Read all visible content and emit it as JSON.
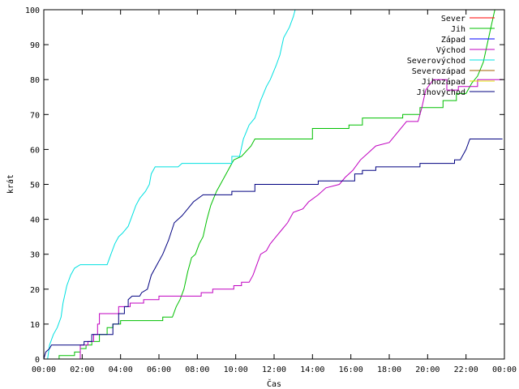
{
  "chart_data": {
    "type": "line",
    "title": "",
    "xlabel": "Čas",
    "ylabel": "krát",
    "xlim": [
      0,
      24
    ],
    "ylim": [
      0,
      100
    ],
    "grid": false,
    "legend_position": "top-right",
    "x_ticks": [
      {
        "value": 0,
        "label": "00:00"
      },
      {
        "value": 2,
        "label": "02:00"
      },
      {
        "value": 4,
        "label": "04:00"
      },
      {
        "value": 6,
        "label": "06:00"
      },
      {
        "value": 8,
        "label": "08:00"
      },
      {
        "value": 10,
        "label": "10:00"
      },
      {
        "value": 12,
        "label": "12:00"
      },
      {
        "value": 14,
        "label": "14:00"
      },
      {
        "value": 16,
        "label": "16:00"
      },
      {
        "value": 18,
        "label": "18:00"
      },
      {
        "value": 20,
        "label": "20:00"
      },
      {
        "value": 22,
        "label": "22:00"
      },
      {
        "value": 24,
        "label": "00:00"
      }
    ],
    "y_ticks": [
      0,
      10,
      20,
      30,
      40,
      50,
      60,
      70,
      80,
      90,
      100
    ],
    "series": [
      {
        "name": "Sever",
        "color": "#ff0000",
        "points": []
      },
      {
        "name": "Jih",
        "color": "#00c000",
        "points": [
          [
            0.0,
            0
          ],
          [
            0.8,
            0
          ],
          [
            0.8,
            1
          ],
          [
            1.6,
            1
          ],
          [
            1.6,
            2
          ],
          [
            1.9,
            2
          ],
          [
            1.9,
            3
          ],
          [
            2.2,
            3
          ],
          [
            2.2,
            4
          ],
          [
            2.5,
            4
          ],
          [
            2.5,
            5
          ],
          [
            2.9,
            5
          ],
          [
            2.9,
            7
          ],
          [
            3.3,
            7
          ],
          [
            3.3,
            9
          ],
          [
            3.6,
            9
          ],
          [
            3.6,
            10
          ],
          [
            4.0,
            10
          ],
          [
            4.0,
            11
          ],
          [
            6.2,
            11
          ],
          [
            6.2,
            12
          ],
          [
            6.7,
            12
          ],
          [
            6.9,
            15
          ],
          [
            7.1,
            17
          ],
          [
            7.3,
            20
          ],
          [
            7.5,
            25
          ],
          [
            7.7,
            29
          ],
          [
            7.9,
            30
          ],
          [
            8.1,
            33
          ],
          [
            8.3,
            35
          ],
          [
            8.5,
            40
          ],
          [
            8.7,
            44
          ],
          [
            9.0,
            48
          ],
          [
            9.3,
            51
          ],
          [
            9.6,
            54
          ],
          [
            9.9,
            57
          ],
          [
            10.3,
            58
          ],
          [
            10.8,
            61
          ],
          [
            11.0,
            63
          ],
          [
            14.0,
            63
          ],
          [
            14.0,
            66
          ],
          [
            15.9,
            66
          ],
          [
            15.9,
            67
          ],
          [
            16.6,
            67
          ],
          [
            16.6,
            69
          ],
          [
            18.7,
            69
          ],
          [
            18.7,
            70
          ],
          [
            19.6,
            70
          ],
          [
            19.6,
            72
          ],
          [
            20.8,
            72
          ],
          [
            20.8,
            74
          ],
          [
            21.5,
            74
          ],
          [
            21.5,
            76
          ],
          [
            22.0,
            76
          ],
          [
            22.3,
            79
          ],
          [
            22.6,
            81
          ],
          [
            22.9,
            85
          ],
          [
            23.1,
            90
          ],
          [
            23.3,
            95
          ],
          [
            23.5,
            100
          ]
        ]
      },
      {
        "name": "Západ",
        "color": "#0000ff",
        "points": []
      },
      {
        "name": "Východ",
        "color": "#c000c0",
        "points": [
          [
            0.0,
            0
          ],
          [
            1.9,
            0
          ],
          [
            1.9,
            4
          ],
          [
            2.3,
            4
          ],
          [
            2.3,
            5
          ],
          [
            2.6,
            5
          ],
          [
            2.6,
            7
          ],
          [
            2.8,
            7
          ],
          [
            2.8,
            10
          ],
          [
            2.9,
            10
          ],
          [
            2.9,
            13
          ],
          [
            3.9,
            13
          ],
          [
            3.9,
            15
          ],
          [
            4.5,
            15
          ],
          [
            4.5,
            16
          ],
          [
            5.2,
            16
          ],
          [
            5.2,
            17
          ],
          [
            6.0,
            17
          ],
          [
            6.0,
            18
          ],
          [
            8.2,
            18
          ],
          [
            8.2,
            19
          ],
          [
            8.8,
            19
          ],
          [
            8.8,
            20
          ],
          [
            9.9,
            20
          ],
          [
            9.9,
            21
          ],
          [
            10.3,
            21
          ],
          [
            10.3,
            22
          ],
          [
            10.7,
            22
          ],
          [
            10.9,
            24
          ],
          [
            11.1,
            27
          ],
          [
            11.3,
            30
          ],
          [
            11.6,
            31
          ],
          [
            11.8,
            33
          ],
          [
            12.1,
            35
          ],
          [
            12.4,
            37
          ],
          [
            12.7,
            39
          ],
          [
            13.0,
            42
          ],
          [
            13.5,
            43
          ],
          [
            13.8,
            45
          ],
          [
            14.3,
            47
          ],
          [
            14.7,
            49
          ],
          [
            15.4,
            50
          ],
          [
            15.7,
            52
          ],
          [
            16.1,
            54
          ],
          [
            16.5,
            57
          ],
          [
            16.9,
            59
          ],
          [
            17.3,
            61
          ],
          [
            18.0,
            62
          ],
          [
            18.3,
            64
          ],
          [
            18.9,
            68
          ],
          [
            19.5,
            68
          ],
          [
            19.7,
            72
          ],
          [
            19.9,
            77
          ],
          [
            20.3,
            80
          ],
          [
            21.0,
            80
          ],
          [
            21.0,
            77
          ],
          [
            21.6,
            77
          ],
          [
            21.6,
            78
          ],
          [
            22.6,
            78
          ],
          [
            22.6,
            80
          ],
          [
            23.9,
            80
          ]
        ]
      },
      {
        "name": "Severovýchod",
        "color": "#00e0e0",
        "points": [
          [
            0.0,
            0
          ],
          [
            0.2,
            0
          ],
          [
            0.3,
            4
          ],
          [
            0.5,
            7
          ],
          [
            0.7,
            9
          ],
          [
            0.9,
            12
          ],
          [
            1.0,
            16
          ],
          [
            1.2,
            21
          ],
          [
            1.4,
            24
          ],
          [
            1.6,
            26
          ],
          [
            1.9,
            27
          ],
          [
            3.3,
            27
          ],
          [
            3.5,
            30
          ],
          [
            3.7,
            33
          ],
          [
            3.9,
            35
          ],
          [
            4.1,
            36
          ],
          [
            4.4,
            38
          ],
          [
            4.6,
            41
          ],
          [
            4.8,
            44
          ],
          [
            5.0,
            46
          ],
          [
            5.3,
            48
          ],
          [
            5.5,
            50
          ],
          [
            5.6,
            53
          ],
          [
            5.8,
            55
          ],
          [
            7.0,
            55
          ],
          [
            7.2,
            56
          ],
          [
            9.8,
            56
          ],
          [
            9.8,
            58
          ],
          [
            10.2,
            58
          ],
          [
            10.4,
            63
          ],
          [
            10.7,
            67
          ],
          [
            11.0,
            69
          ],
          [
            11.3,
            74
          ],
          [
            11.6,
            78
          ],
          [
            11.8,
            80
          ],
          [
            12.1,
            84
          ],
          [
            12.3,
            87
          ],
          [
            12.5,
            92
          ],
          [
            12.8,
            95
          ],
          [
            13.0,
            98
          ],
          [
            13.1,
            100
          ]
        ]
      },
      {
        "name": "Severozápad",
        "color": "#a06000",
        "points": []
      },
      {
        "name": "Jihozápad",
        "color": "#e0e000",
        "points": []
      },
      {
        "name": "Jihovýchod",
        "color": "#000080",
        "points": [
          [
            0.0,
            0
          ],
          [
            0.1,
            2
          ],
          [
            0.3,
            3
          ],
          [
            0.4,
            4
          ],
          [
            2.1,
            4
          ],
          [
            2.1,
            5
          ],
          [
            2.5,
            5
          ],
          [
            2.5,
            7
          ],
          [
            3.6,
            7
          ],
          [
            3.6,
            10
          ],
          [
            3.9,
            10
          ],
          [
            3.9,
            13
          ],
          [
            4.2,
            13
          ],
          [
            4.2,
            15
          ],
          [
            4.4,
            15
          ],
          [
            4.4,
            17
          ],
          [
            4.6,
            18
          ],
          [
            5.0,
            18
          ],
          [
            5.1,
            19
          ],
          [
            5.4,
            20
          ],
          [
            5.6,
            24
          ],
          [
            5.9,
            27
          ],
          [
            6.2,
            30
          ],
          [
            6.5,
            34
          ],
          [
            6.8,
            39
          ],
          [
            7.2,
            41
          ],
          [
            7.5,
            43
          ],
          [
            7.8,
            45
          ],
          [
            8.3,
            47
          ],
          [
            9.8,
            47
          ],
          [
            9.8,
            48
          ],
          [
            11.0,
            48
          ],
          [
            11.0,
            50
          ],
          [
            14.3,
            50
          ],
          [
            14.3,
            51
          ],
          [
            16.2,
            51
          ],
          [
            16.2,
            53
          ],
          [
            16.6,
            53
          ],
          [
            16.6,
            54
          ],
          [
            17.3,
            54
          ],
          [
            17.3,
            55
          ],
          [
            19.6,
            55
          ],
          [
            19.6,
            56
          ],
          [
            21.4,
            56
          ],
          [
            21.4,
            57
          ],
          [
            21.7,
            57
          ],
          [
            22.0,
            60
          ],
          [
            22.2,
            63
          ],
          [
            23.9,
            63
          ]
        ]
      }
    ]
  }
}
